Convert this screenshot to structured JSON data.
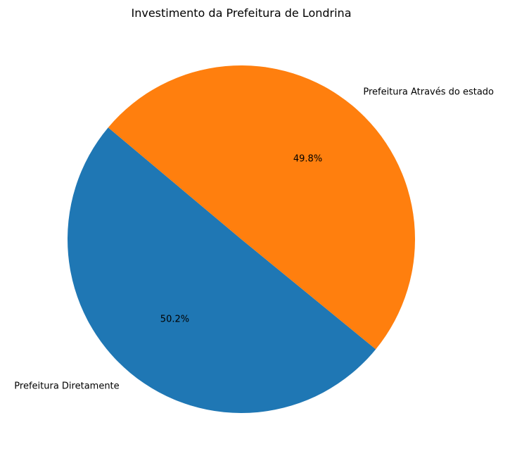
{
  "chart_data": {
    "type": "pie",
    "title": "Investimento da Prefeitura de Londrina",
    "slices": [
      {
        "label": "Prefeitura Diretamente",
        "value": 50.2,
        "pct_label": "50.2%",
        "color": "#1f77b4"
      },
      {
        "label": "Prefeitura Através do estado",
        "value": 49.8,
        "pct_label": "49.8%",
        "color": "#ff7f0e"
      }
    ],
    "start_angle_deg": 140,
    "counterclockwise": true,
    "legend": "none"
  }
}
